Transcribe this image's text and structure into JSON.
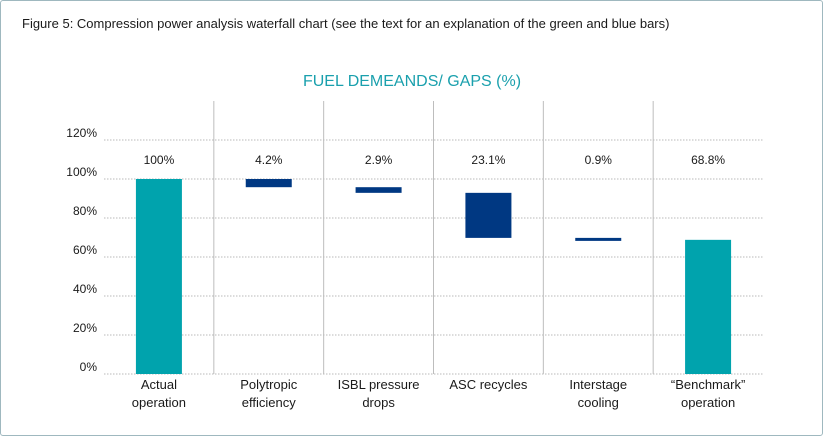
{
  "caption": "Figure 5: Compression power analysis waterfall chart (see the text for an explanation of the green and blue bars)",
  "colors": {
    "teal": "#00a3ad",
    "navy": "#003882",
    "title": "#1aa0ad",
    "gridline": "#b9b9b9",
    "separator": "#bdbdbd"
  },
  "chart_data": {
    "type": "bar",
    "title": "FUEL DEMEANDS/ GAPS (%)",
    "xlabel": "",
    "ylabel": "",
    "ylim": [
      0,
      120
    ],
    "yticks": [
      0,
      20,
      40,
      60,
      80,
      100,
      120
    ],
    "ytick_labels": [
      "0%",
      "20%",
      "40%",
      "60%",
      "80%",
      "100%",
      "120%"
    ],
    "grid": true,
    "categories": [
      [
        "Actual",
        "operation"
      ],
      [
        "Polytropic",
        "efficiency"
      ],
      [
        "ISBL pressure",
        "drops"
      ],
      [
        "ASC recycles"
      ],
      [
        "Interstage",
        "cooling"
      ],
      [
        "“Benchmark”",
        "operation"
      ]
    ],
    "bars": [
      {
        "start": 0,
        "end": 100,
        "label": "100%",
        "kind": "total"
      },
      {
        "start": 100,
        "end": 95.8,
        "label": "4.2%",
        "kind": "gap"
      },
      {
        "start": 95.8,
        "end": 92.9,
        "label": "2.9%",
        "kind": "gap"
      },
      {
        "start": 92.9,
        "end": 69.8,
        "label": "23.1%",
        "kind": "gap"
      },
      {
        "start": 69.8,
        "end": 68.9,
        "label": "0.9%",
        "kind": "gap"
      },
      {
        "start": 0,
        "end": 68.8,
        "label": "68.8%",
        "kind": "total"
      }
    ]
  }
}
